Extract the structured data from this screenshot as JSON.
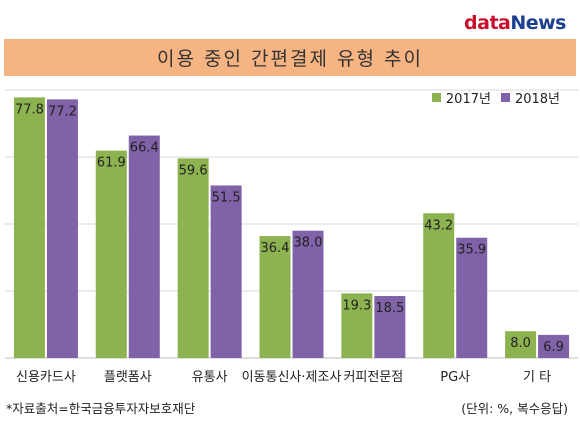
{
  "logo": {
    "part_a": "data",
    "part_b": "News"
  },
  "chart_data": {
    "type": "bar",
    "title": "이용 중인 간편결제 유형 추이",
    "categories": [
      "신용카드사",
      "플랫폼사",
      "유통사",
      "이동통신사·제조사",
      "커피전문점",
      "PG사",
      "기 타"
    ],
    "series": [
      {
        "name": "2017년",
        "color": "#8db350",
        "values": [
          77.8,
          61.9,
          59.6,
          36.4,
          19.3,
          43.2,
          8.0
        ]
      },
      {
        "name": "2018년",
        "color": "#7f62a8",
        "values": [
          77.2,
          66.4,
          51.5,
          38.0,
          18.5,
          35.9,
          6.9
        ]
      }
    ],
    "value_labels": [
      [
        "77.8",
        "61.9",
        "59.6",
        "36.4",
        "19.3",
        "43.2",
        "8.0"
      ],
      [
        "77.2",
        "66.4",
        "51.5",
        "38.0",
        "18.5",
        "35.9",
        "6.9"
      ]
    ],
    "ylim": [
      0,
      80
    ],
    "grid": true,
    "legend_position": "top-right"
  },
  "footer": {
    "source": "*자료출처=한국금융투자자보호재단",
    "unit_note": "(단위: %, 복수응답)"
  }
}
